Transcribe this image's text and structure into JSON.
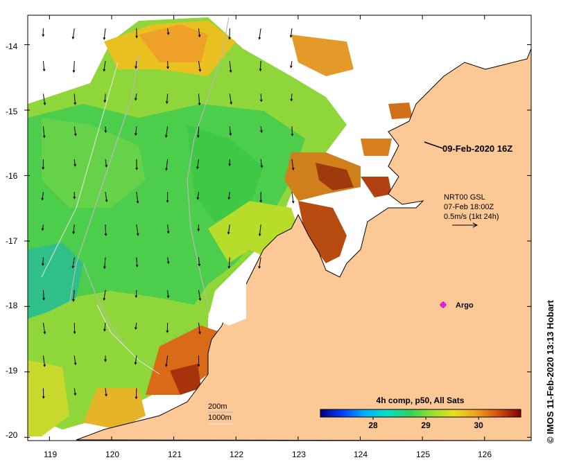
{
  "map": {
    "lat_ticks": [
      "-14",
      "-15",
      "-16",
      "-17",
      "-18",
      "-19",
      "-20"
    ],
    "lon_ticks": [
      "119",
      "120",
      "121",
      "122",
      "123",
      "124",
      "125",
      "126"
    ],
    "lat_values": [
      -14,
      -15,
      -16,
      -17,
      -18,
      -19,
      -20
    ],
    "lon_values": [
      119,
      120,
      121,
      122,
      123,
      124,
      125,
      126
    ],
    "lat_range": [
      -20.05,
      -13.55
    ],
    "lon_range": [
      118.65,
      126.75
    ],
    "land_color": "#fcc896",
    "coast_color": "#000000"
  },
  "annotations": {
    "timestamp": "09-Feb-2020 16Z",
    "current_product": "NRT00 GSL",
    "current_time": "07-Feb 18:00Z",
    "current_scale": "0.5m/s (1kt 24h)",
    "argo_label": "Argo",
    "depth_200": "200m",
    "depth_1000": "1000m"
  },
  "colorbar": {
    "title": "4h comp, p50, All Sats",
    "ticks": [
      "28",
      "29",
      "30"
    ],
    "tick_values": [
      28,
      29,
      30
    ],
    "range": [
      27.0,
      30.8
    ],
    "colors": [
      "#00007f",
      "#0040ff",
      "#00b0ff",
      "#00e0c0",
      "#30d060",
      "#90e030",
      "#e8e020",
      "#f0a020",
      "#d05010",
      "#7f0000"
    ]
  },
  "credit": "© IMOS 11-Feb-2020 13:13 Hobart"
}
